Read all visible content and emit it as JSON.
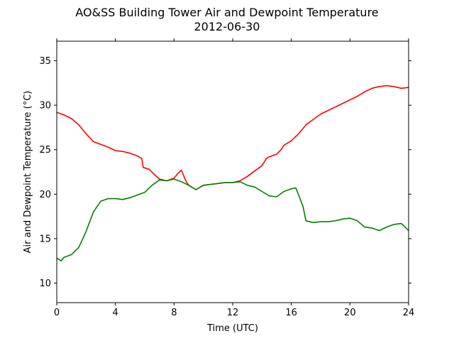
{
  "chart_data": {
    "type": "line",
    "title": "AO&SS Building Tower Air and Dewpoint Temperature",
    "subtitle": "2012-06-30",
    "xlabel": "Time (UTC)",
    "ylabel": "Air and Dewpoint Temperature (°C)",
    "xlim": [
      0,
      24
    ],
    "ylim": [
      7.8,
      37.2
    ],
    "xticks": [
      0,
      4,
      8,
      12,
      16,
      20,
      24
    ],
    "yticks": [
      10,
      15,
      20,
      25,
      30,
      35
    ],
    "grid": false,
    "legend": "none",
    "series": [
      {
        "color": "#ff0000",
        "x": [
          0,
          0.5,
          1,
          1.5,
          2,
          2.5,
          3,
          3.5,
          4,
          4.5,
          5,
          5.5,
          5.8,
          5.9,
          6.3,
          6.6,
          7,
          7.5,
          8,
          8.3,
          8.5,
          8.8,
          9,
          9.5,
          10,
          10.5,
          11,
          11.5,
          12,
          12.5,
          13,
          13.5,
          14,
          14.3,
          14.5,
          15,
          15.3,
          15.5,
          16,
          16.5,
          17,
          17.5,
          18,
          18.5,
          19,
          19.5,
          20,
          20.5,
          21,
          21.5,
          22,
          22.5,
          23,
          23.5,
          24
        ],
        "y": [
          29.2,
          28.9,
          28.5,
          27.8,
          26.8,
          25.9,
          25.6,
          25.3,
          24.9,
          24.8,
          24.6,
          24.3,
          24.0,
          23.0,
          22.8,
          22.3,
          21.7,
          21.5,
          21.8,
          22.4,
          22.7,
          21.5,
          21.0,
          20.5,
          21.0,
          21.1,
          21.2,
          21.3,
          21.3,
          21.5,
          22.0,
          22.6,
          23.2,
          24.0,
          24.2,
          24.5,
          25.0,
          25.5,
          26.0,
          26.8,
          27.8,
          28.4,
          29.0,
          29.4,
          29.8,
          30.2,
          30.6,
          31.0,
          31.5,
          31.9,
          32.1,
          32.2,
          32.1,
          31.9,
          32.0
        ]
      },
      {
        "color": "#008000",
        "x": [
          0,
          0.3,
          0.5,
          1,
          1.5,
          2,
          2.5,
          3,
          3.5,
          4,
          4.5,
          5,
          5.5,
          6,
          6.5,
          7,
          7.5,
          8,
          8.5,
          9,
          9.5,
          10,
          10.5,
          11,
          11.5,
          12,
          12.5,
          13,
          13.5,
          14,
          14.5,
          15,
          15.5,
          16,
          16.3,
          16.5,
          16.8,
          17,
          17.5,
          18,
          18.5,
          19,
          19.5,
          20,
          20.5,
          21,
          21.5,
          22,
          22.5,
          23,
          23.5,
          24
        ],
        "y": [
          12.8,
          12.5,
          12.9,
          13.2,
          14.0,
          15.8,
          18.0,
          19.2,
          19.5,
          19.5,
          19.4,
          19.6,
          19.9,
          20.2,
          21.0,
          21.6,
          21.5,
          21.7,
          21.4,
          21.0,
          20.5,
          21.0,
          21.1,
          21.2,
          21.3,
          21.3,
          21.4,
          21.0,
          20.8,
          20.3,
          19.8,
          19.7,
          20.3,
          20.6,
          20.7,
          19.9,
          18.6,
          17.0,
          16.8,
          16.9,
          16.9,
          17.0,
          17.2,
          17.3,
          17.0,
          16.3,
          16.2,
          15.9,
          16.3,
          16.6,
          16.7,
          15.9
        ]
      }
    ]
  }
}
